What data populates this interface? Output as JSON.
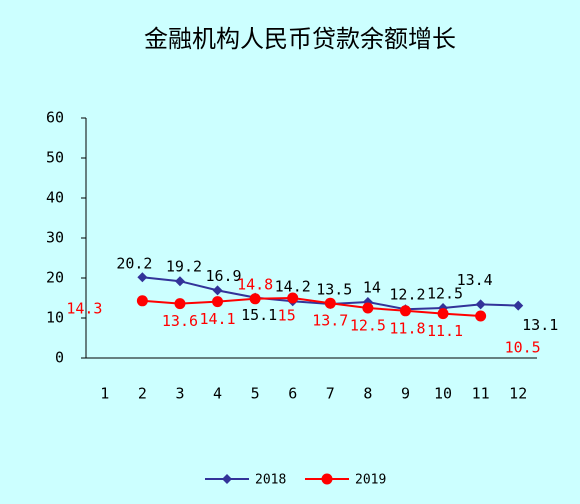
{
  "chart_data": {
    "type": "line",
    "title": "金融机构人民币贷款余额增长",
    "categories": [
      "1",
      "2",
      "3",
      "4",
      "5",
      "6",
      "7",
      "8",
      "9",
      "10",
      "11",
      "12"
    ],
    "series": [
      {
        "name": "2018",
        "color": "#333399",
        "values": [
          null,
          20.2,
          19.2,
          16.9,
          15.1,
          14.2,
          13.5,
          14,
          12.2,
          12.5,
          13.4,
          13.1
        ]
      },
      {
        "name": "2019",
        "color": "#ff0000",
        "values": [
          null,
          14.3,
          13.6,
          14.1,
          14.8,
          15,
          13.7,
          12.5,
          11.8,
          11.1,
          10.5,
          null
        ]
      }
    ],
    "ylim": [
      0,
      60
    ],
    "yticks": [
      0,
      10,
      20,
      30,
      40,
      50,
      60
    ],
    "grid": false,
    "legend": "bottom"
  }
}
